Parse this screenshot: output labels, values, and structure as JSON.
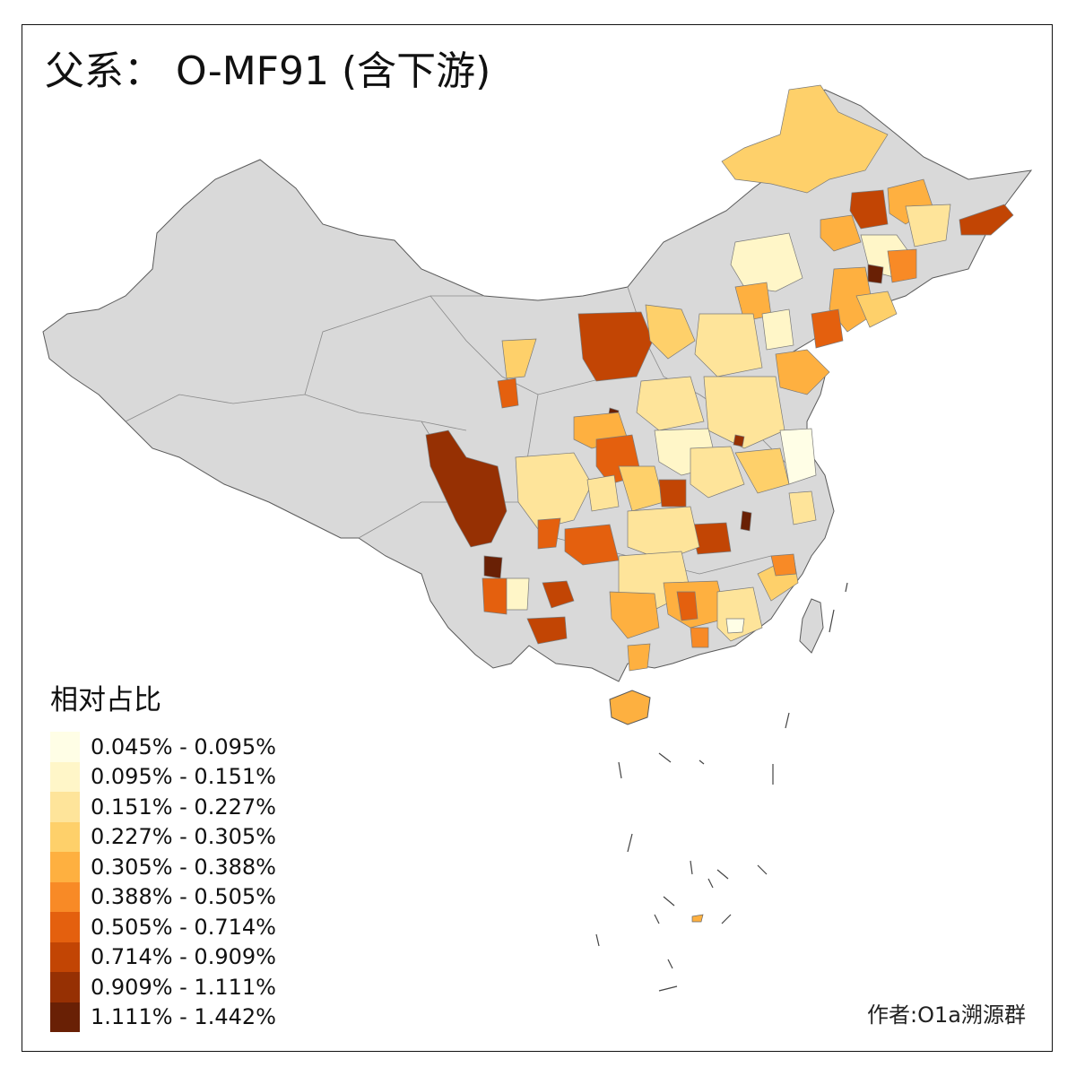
{
  "title": "父系： O-MF91 (含下游)",
  "legend": {
    "title": "相对占比",
    "bins": [
      {
        "label": "0.045% - 0.095%",
        "color": "#fffee6"
      },
      {
        "label": "0.095% - 0.151%",
        "color": "#fff6c8"
      },
      {
        "label": "0.151% - 0.227%",
        "color": "#fee49a"
      },
      {
        "label": "0.227% - 0.305%",
        "color": "#fed06a"
      },
      {
        "label": "0.305% - 0.388%",
        "color": "#feb040"
      },
      {
        "label": "0.388% - 0.505%",
        "color": "#f88a26"
      },
      {
        "label": "0.505% - 0.714%",
        "color": "#e4600e"
      },
      {
        "label": "0.714% - 0.909%",
        "color": "#c24504"
      },
      {
        "label": "0.909% - 1.111%",
        "color": "#963003"
      },
      {
        "label": "1.111% - 1.442%",
        "color": "#692005"
      }
    ]
  },
  "credit": "作者:O1a溯源群",
  "colors": {
    "no_data": "#d9d9d9",
    "border": "#7a7a7a"
  }
}
